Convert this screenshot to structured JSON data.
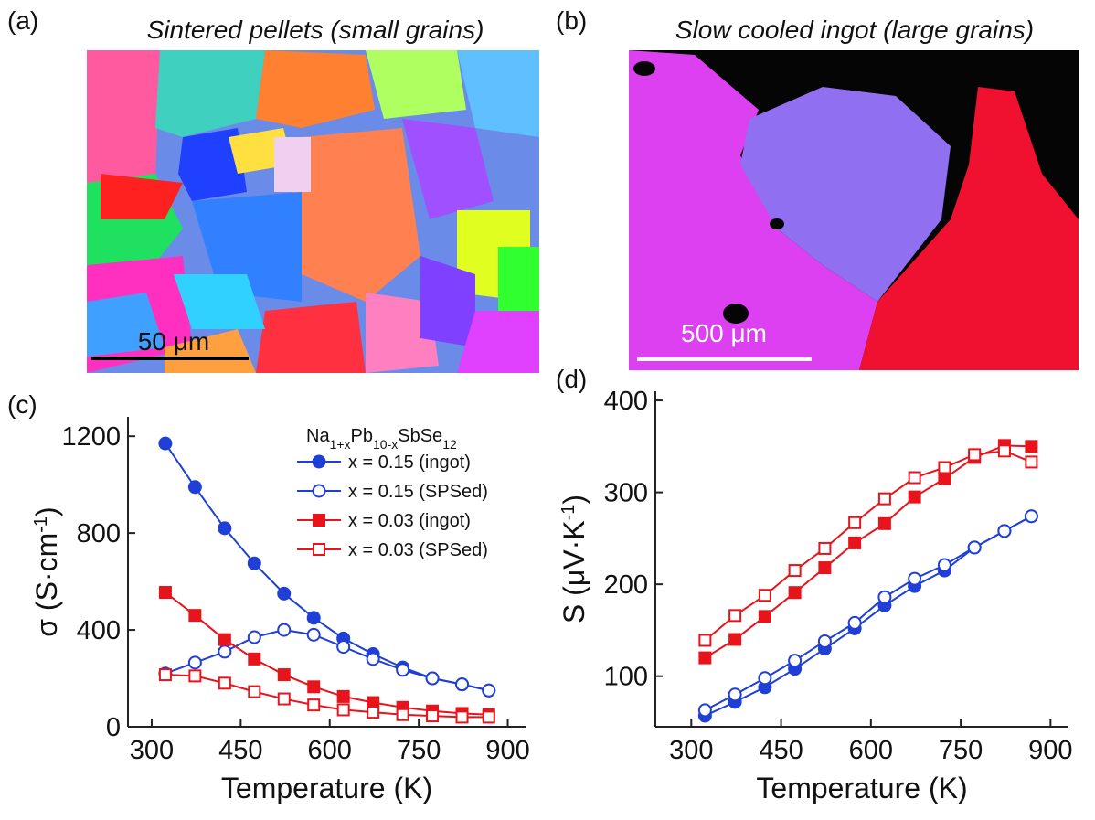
{
  "panels": [
    {
      "label": "(a)",
      "title": "Sintered pellets (small grains)",
      "scale_bar": "50 μm"
    },
    {
      "label": "(b)",
      "title": "Slow cooled ingot (large grains)",
      "scale_bar": "500 μm"
    }
  ],
  "chart_data": [
    {
      "type": "line",
      "label": "(c)",
      "xlabel": "Temperature (K)",
      "ylabel": [
        "σ (S·cm",
        "-1",
        ")"
      ],
      "legend_title": [
        "Na",
        "1+x",
        "Pb",
        "10-x",
        "SbSe",
        "12"
      ],
      "x": [
        323,
        373,
        423,
        473,
        523,
        573,
        623,
        673,
        723,
        773,
        823,
        868
      ],
      "xlim": [
        260,
        930
      ],
      "xticks": [
        300,
        450,
        600,
        750,
        900
      ],
      "ylim": [
        0,
        1280
      ],
      "yticks": [
        0,
        400,
        800,
        1200
      ],
      "series": [
        {
          "name": "x = 0.15 (ingot)",
          "color": "#1f3fd6",
          "marker": "circle",
          "filled": true,
          "values": [
            1170,
            990,
            820,
            675,
            550,
            450,
            365,
            300,
            245,
            200,
            175,
            150
          ]
        },
        {
          "name": "x = 0.15 (SPSed)",
          "color": "#1f3fd6",
          "marker": "circle",
          "filled": false,
          "values": [
            220,
            265,
            310,
            370,
            400,
            380,
            330,
            280,
            235,
            200,
            175,
            150
          ]
        },
        {
          "name": "x = 0.03 (ingot)",
          "color": "#e8141c",
          "marker": "square",
          "filled": true,
          "values": [
            555,
            460,
            360,
            280,
            215,
            165,
            125,
            100,
            80,
            65,
            55,
            50
          ]
        },
        {
          "name": "x = 0.03 (SPSed)",
          "color": "#e8141c",
          "marker": "square",
          "filled": false,
          "values": [
            215,
            210,
            180,
            145,
            115,
            90,
            70,
            60,
            50,
            45,
            40,
            40
          ]
        }
      ]
    },
    {
      "type": "line",
      "label": "(d)",
      "xlabel": "Temperature (K)",
      "ylabel": [
        "S (μV·K",
        "-1",
        ")"
      ],
      "x": [
        323,
        373,
        423,
        473,
        523,
        573,
        623,
        673,
        723,
        773,
        823,
        868
      ],
      "xlim": [
        240,
        930
      ],
      "xticks": [
        300,
        450,
        600,
        750,
        900
      ],
      "ylim": [
        45,
        410
      ],
      "yticks": [
        100,
        200,
        300,
        400
      ],
      "series": [
        {
          "color": "#1f3fd6",
          "marker": "circle",
          "filled": true,
          "values": [
            57,
            72,
            88,
            108,
            130,
            152,
            177,
            198,
            215,
            240,
            258,
            274
          ]
        },
        {
          "color": "#1f3fd6",
          "marker": "circle",
          "filled": false,
          "values": [
            63,
            80,
            98,
            117,
            138,
            158,
            186,
            206,
            221,
            240,
            258,
            274
          ]
        },
        {
          "color": "#e8141c",
          "marker": "square",
          "filled": true,
          "values": [
            120,
            140,
            165,
            191,
            218,
            245,
            266,
            295,
            315,
            338,
            351,
            350
          ]
        },
        {
          "color": "#e8141c",
          "marker": "square",
          "filled": false,
          "values": [
            139,
            166,
            188,
            215,
            239,
            267,
            293,
            316,
            327,
            341,
            345,
            333
          ]
        }
      ]
    }
  ]
}
